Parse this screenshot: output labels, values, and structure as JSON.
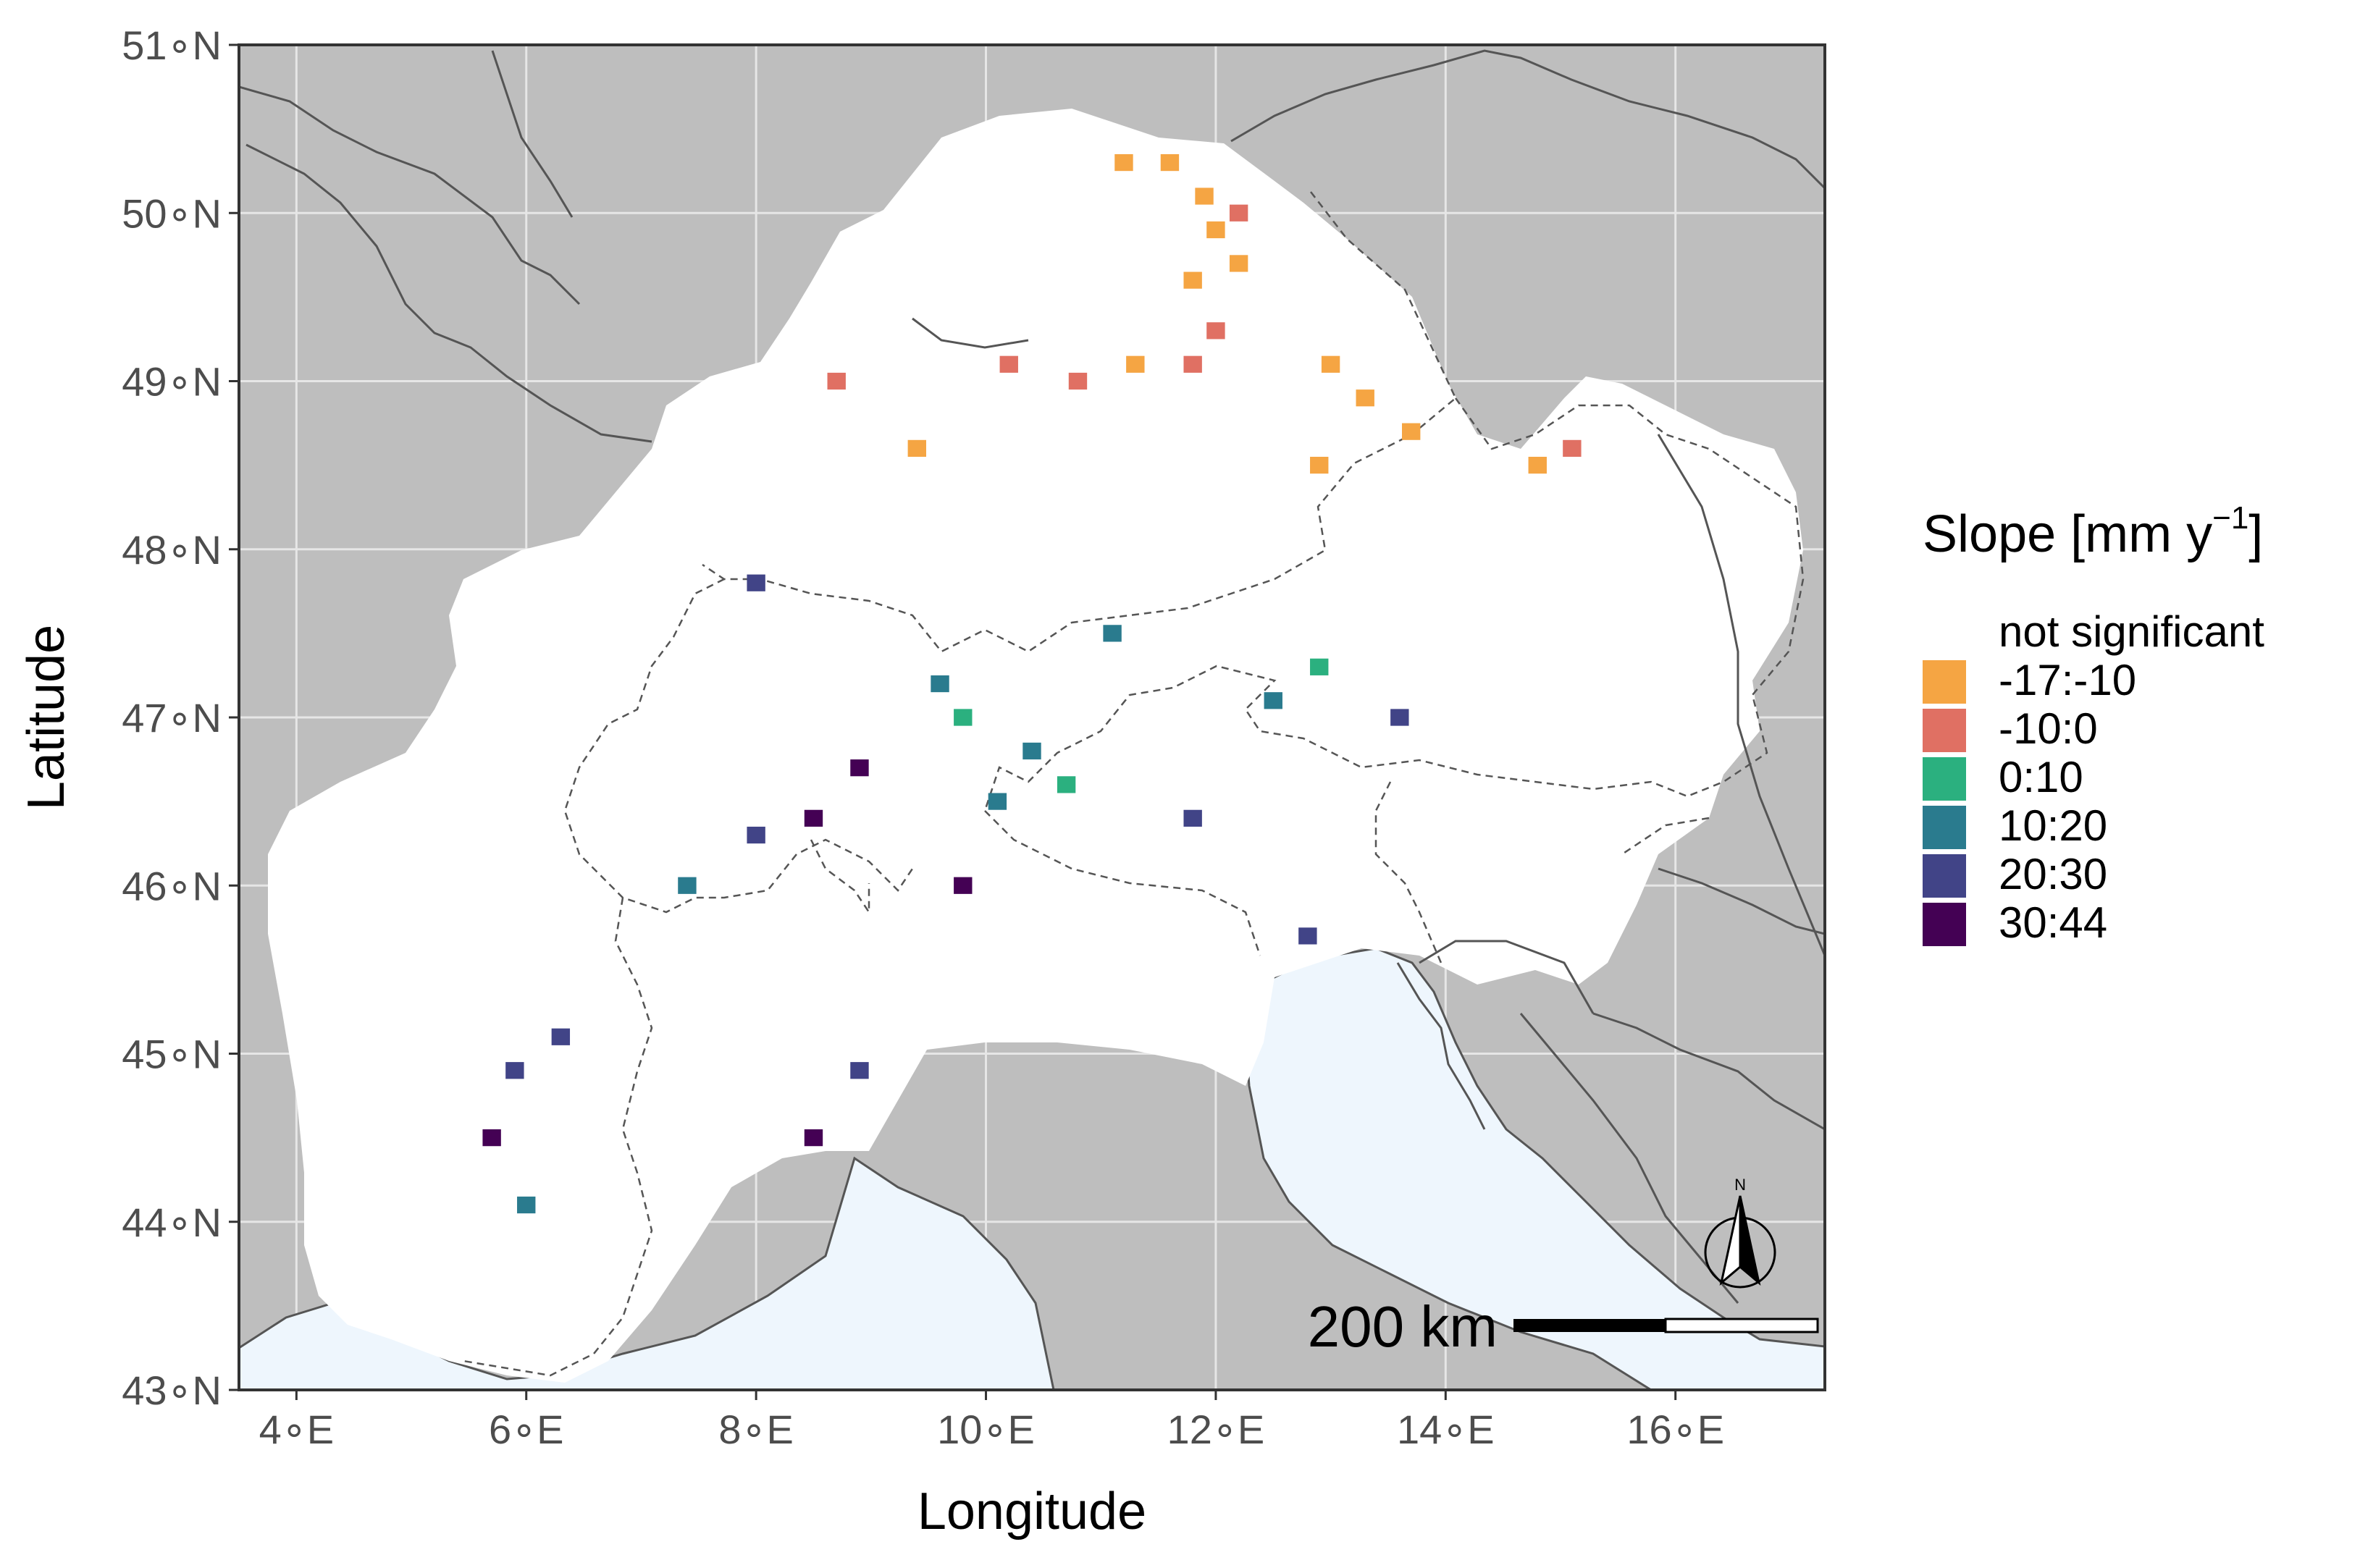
{
  "map": {
    "x_axis_title": "Longitude",
    "y_axis_title": "Latitude",
    "x_ticks": [
      {
        "value": 4,
        "label": "4∘E"
      },
      {
        "value": 6,
        "label": "6∘E"
      },
      {
        "value": 8,
        "label": "8∘E"
      },
      {
        "value": 10,
        "label": "10∘E"
      },
      {
        "value": 12,
        "label": "12∘E"
      },
      {
        "value": 14,
        "label": "14∘E"
      },
      {
        "value": 16,
        "label": "16∘E"
      }
    ],
    "y_ticks": [
      {
        "value": 43,
        "label": "43∘N"
      },
      {
        "value": 44,
        "label": "44∘N"
      },
      {
        "value": 45,
        "label": "45∘N"
      },
      {
        "value": 46,
        "label": "46∘N"
      },
      {
        "value": 47,
        "label": "47∘N"
      },
      {
        "value": 48,
        "label": "48∘N"
      },
      {
        "value": 49,
        "label": "49∘N"
      },
      {
        "value": 50,
        "label": "50∘N"
      },
      {
        "value": 51,
        "label": "51∘N"
      }
    ],
    "lon_range": [
      3.5,
      17.3
    ],
    "lat_range": [
      43,
      51
    ],
    "scale_bar_label": "200 km",
    "north_arrow_label": "N",
    "colors": {
      "land": "#bebebe",
      "sea": "#eef6fd",
      "study_area": "#ffffff",
      "borders": "#555555",
      "grid": "#e6e6e6"
    }
  },
  "legend": {
    "title_main": "Slope [mm y",
    "title_sup": "−1",
    "title_end": "]",
    "items": [
      {
        "label": "not significant",
        "color": "#ffffff"
      },
      {
        "label": "-17:-10",
        "color": "#f5a543"
      },
      {
        "label": "-10:0",
        "color": "#e07063"
      },
      {
        "label": "0:10",
        "color": "#2bb07f"
      },
      {
        "label": "10:20",
        "color": "#2a7b8e"
      },
      {
        "label": "20:30",
        "color": "#414487"
      },
      {
        "label": "30:44",
        "color": "#440154"
      }
    ]
  },
  "chart_data": {
    "type": "heatmap",
    "x_label": "Longitude",
    "y_label": "Latitude",
    "xlim": [
      3.5,
      17.3
    ],
    "ylim": [
      43,
      51
    ],
    "value_units": "mm y−1",
    "cells": [
      {
        "lon": 11.2,
        "lat": 50.3,
        "class": "-17:-10"
      },
      {
        "lon": 11.6,
        "lat": 50.3,
        "class": "-17:-10"
      },
      {
        "lon": 11.9,
        "lat": 50.1,
        "class": "-17:-10"
      },
      {
        "lon": 12.0,
        "lat": 49.9,
        "class": "-17:-10"
      },
      {
        "lon": 12.2,
        "lat": 50.0,
        "class": "-10:0"
      },
      {
        "lon": 12.2,
        "lat": 49.7,
        "class": "-17:-10"
      },
      {
        "lon": 11.8,
        "lat": 49.6,
        "class": "-17:-10"
      },
      {
        "lon": 12.0,
        "lat": 49.3,
        "class": "-10:0"
      },
      {
        "lon": 11.8,
        "lat": 49.1,
        "class": "-10:0"
      },
      {
        "lon": 11.3,
        "lat": 49.1,
        "class": "-17:-10"
      },
      {
        "lon": 10.8,
        "lat": 49.0,
        "class": "-10:0"
      },
      {
        "lon": 8.7,
        "lat": 49.0,
        "class": "-10:0"
      },
      {
        "lon": 10.2,
        "lat": 49.1,
        "class": "-10:0"
      },
      {
        "lon": 13.0,
        "lat": 49.1,
        "class": "-17:-10"
      },
      {
        "lon": 13.3,
        "lat": 48.9,
        "class": "-17:-10"
      },
      {
        "lon": 13.7,
        "lat": 48.7,
        "class": "-17:-10"
      },
      {
        "lon": 12.9,
        "lat": 48.5,
        "class": "-17:-10"
      },
      {
        "lon": 14.8,
        "lat": 48.5,
        "class": "-17:-10"
      },
      {
        "lon": 15.1,
        "lat": 48.6,
        "class": "-10:0"
      },
      {
        "lon": 9.4,
        "lat": 48.6,
        "class": "-17:-10"
      },
      {
        "lon": 8.0,
        "lat": 47.8,
        "class": "20:30"
      },
      {
        "lon": 9.6,
        "lat": 47.2,
        "class": "10:20"
      },
      {
        "lon": 9.8,
        "lat": 47.0,
        "class": "0:10"
      },
      {
        "lon": 10.4,
        "lat": 46.8,
        "class": "10:20"
      },
      {
        "lon": 10.7,
        "lat": 46.6,
        "class": "0:10"
      },
      {
        "lon": 10.1,
        "lat": 46.5,
        "class": "10:20"
      },
      {
        "lon": 11.8,
        "lat": 46.4,
        "class": "20:30"
      },
      {
        "lon": 12.5,
        "lat": 47.1,
        "class": "10:20"
      },
      {
        "lon": 12.9,
        "lat": 47.3,
        "class": "0:10"
      },
      {
        "lon": 13.6,
        "lat": 47.0,
        "class": "20:30"
      },
      {
        "lon": 11.1,
        "lat": 47.5,
        "class": "10:20"
      },
      {
        "lon": 8.9,
        "lat": 46.7,
        "class": "30:44"
      },
      {
        "lon": 8.5,
        "lat": 46.4,
        "class": "30:44"
      },
      {
        "lon": 8.0,
        "lat": 46.3,
        "class": "20:30"
      },
      {
        "lon": 9.8,
        "lat": 46.0,
        "class": "30:44"
      },
      {
        "lon": 7.4,
        "lat": 46.0,
        "class": "10:20"
      },
      {
        "lon": 6.3,
        "lat": 45.1,
        "class": "20:30"
      },
      {
        "lon": 5.9,
        "lat": 44.9,
        "class": "20:30"
      },
      {
        "lon": 5.7,
        "lat": 44.5,
        "class": "30:44"
      },
      {
        "lon": 6.0,
        "lat": 44.1,
        "class": "10:20"
      },
      {
        "lon": 8.5,
        "lat": 44.5,
        "class": "30:44"
      },
      {
        "lon": 8.9,
        "lat": 44.9,
        "class": "20:30"
      },
      {
        "lon": 12.8,
        "lat": 45.7,
        "class": "20:30"
      }
    ]
  }
}
